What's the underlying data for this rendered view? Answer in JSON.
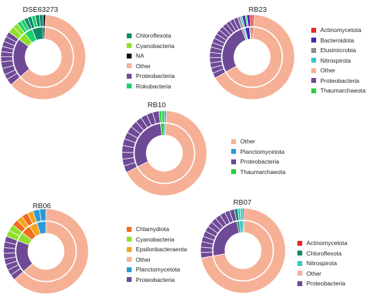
{
  "chart_data": [
    {
      "type": "pie",
      "variant": "nested-donut",
      "title": "DSE63273",
      "legend": [
        "Chloroflexota",
        "Cyanobacteria",
        "NA",
        "Other",
        "Proteobacteria",
        "Rokubacteria"
      ],
      "legend_colors": [
        "#0f8a6a",
        "#8ee02a",
        "#111111",
        "#f6b096",
        "#6e4a96",
        "#19d16c"
      ],
      "outer_ring": [
        {
          "phylum": "NA",
          "value": 1.0
        },
        {
          "phylum": "Other",
          "value": 63.0
        },
        {
          "phylum": "Proteobacteria",
          "value": 2.5
        },
        {
          "phylum": "Proteobacteria",
          "value": 2.0
        },
        {
          "phylum": "Proteobacteria",
          "value": 2.5
        },
        {
          "phylum": "Proteobacteria",
          "value": 2.5
        },
        {
          "phylum": "Proteobacteria",
          "value": 2.0
        },
        {
          "phylum": "Proteobacteria",
          "value": 2.0
        },
        {
          "phylum": "Proteobacteria",
          "value": 2.0
        },
        {
          "phylum": "Proteobacteria",
          "value": 2.0
        },
        {
          "phylum": "Proteobacteria",
          "value": 2.0
        },
        {
          "phylum": "Proteobacteria",
          "value": 2.0
        },
        {
          "phylum": "Cyanobacteria",
          "value": 2.5
        },
        {
          "phylum": "Cyanobacteria",
          "value": 2.0
        },
        {
          "phylum": "Rokubacteria",
          "value": 1.5
        },
        {
          "phylum": "Rokubacteria",
          "value": 1.5
        },
        {
          "phylum": "Chloroflexota",
          "value": 1.5
        },
        {
          "phylum": "Chloroflexota",
          "value": 1.5
        },
        {
          "phylum": "Rokubacteria",
          "value": 1.5
        },
        {
          "phylum": "Chloroflexota",
          "value": 1.5
        },
        {
          "phylum": "Chloroflexota",
          "value": 1.5
        }
      ],
      "inner_ring": [
        {
          "phylum": "NA",
          "value": 1.0
        },
        {
          "phylum": "Other",
          "value": 63.0
        },
        {
          "phylum": "Proteobacteria",
          "value": 21.5
        },
        {
          "phylum": "Cyanobacteria",
          "value": 4.5
        },
        {
          "phylum": "Rokubacteria",
          "value": 4.5
        },
        {
          "phylum": "Chloroflexota",
          "value": 6.0
        }
      ]
    },
    {
      "type": "pie",
      "variant": "nested-donut",
      "title": "RB23",
      "legend": [
        "Actinomycetota",
        "Bacteroidota",
        "Elusimicrobia",
        "Nitrospirota",
        "Other",
        "Proteobacteria",
        "Thaumarchaeota"
      ],
      "legend_colors": [
        "#e8262b",
        "#4b25b0",
        "#8c8c8c",
        "#35c9c9",
        "#f6b096",
        "#6e4a96",
        "#2ecc40"
      ],
      "outer_ring": [
        {
          "phylum": "Actinomycetota",
          "value": 0.8
        },
        {
          "phylum": "Other",
          "value": 66.0
        },
        {
          "phylum": "Proteobacteria",
          "value": 2.0
        },
        {
          "phylum": "Proteobacteria",
          "value": 2.0
        },
        {
          "phylum": "Proteobacteria",
          "value": 2.0
        },
        {
          "phylum": "Proteobacteria",
          "value": 2.0
        },
        {
          "phylum": "Proteobacteria",
          "value": 2.0
        },
        {
          "phylum": "Proteobacteria",
          "value": 2.0
        },
        {
          "phylum": "Proteobacteria",
          "value": 1.8
        },
        {
          "phylum": "Proteobacteria",
          "value": 1.8
        },
        {
          "phylum": "Proteobacteria",
          "value": 1.8
        },
        {
          "phylum": "Proteobacteria",
          "value": 1.8
        },
        {
          "phylum": "Proteobacteria",
          "value": 1.8
        },
        {
          "phylum": "Proteobacteria",
          "value": 1.8
        },
        {
          "phylum": "Proteobacteria",
          "value": 1.6
        },
        {
          "phylum": "Proteobacteria",
          "value": 1.6
        },
        {
          "phylum": "Proteobacteria",
          "value": 1.6
        },
        {
          "phylum": "Elusimicrobia",
          "value": 1.0
        },
        {
          "phylum": "Nitrospirota",
          "value": 0.8
        },
        {
          "phylum": "Bacteroidota",
          "value": 1.2
        },
        {
          "phylum": "Thaumarchaeota",
          "value": 0.6
        },
        {
          "phylum": "Bacteroidota",
          "value": 1.2
        },
        {
          "phylum": "Actinomycetota",
          "value": 0.8
        }
      ],
      "inner_ring": [
        {
          "phylum": "Actinomycetota",
          "value": 0.8
        },
        {
          "phylum": "Other",
          "value": 66.0
        },
        {
          "phylum": "Proteobacteria",
          "value": 27.6
        },
        {
          "phylum": "Elusimicrobia",
          "value": 1.0
        },
        {
          "phylum": "Nitrospirota",
          "value": 0.8
        },
        {
          "phylum": "Bacteroidota",
          "value": 2.4
        },
        {
          "phylum": "Thaumarchaeota",
          "value": 0.6
        },
        {
          "phylum": "Actinomycetota",
          "value": 0.8
        }
      ]
    },
    {
      "type": "pie",
      "variant": "nested-donut",
      "title": "RB10",
      "legend": [
        "Other",
        "Planctomycetota",
        "Proteobacteria",
        "Thaumarchaeota"
      ],
      "legend_colors": [
        "#f6b096",
        "#2b9ad6",
        "#6e4a96",
        "#2ecc40"
      ],
      "outer_ring": [
        {
          "phylum": "Planctomycetota",
          "value": 0.8
        },
        {
          "phylum": "Other",
          "value": 64.0
        },
        {
          "phylum": "Proteobacteria",
          "value": 2.5
        },
        {
          "phylum": "Proteobacteria",
          "value": 2.5
        },
        {
          "phylum": "Proteobacteria",
          "value": 2.5
        },
        {
          "phylum": "Proteobacteria",
          "value": 2.5
        },
        {
          "phylum": "Proteobacteria",
          "value": 2.5
        },
        {
          "phylum": "Proteobacteria",
          "value": 2.5
        },
        {
          "phylum": "Proteobacteria",
          "value": 2.5
        },
        {
          "phylum": "Proteobacteria",
          "value": 2.5
        },
        {
          "phylum": "Proteobacteria",
          "value": 2.3
        },
        {
          "phylum": "Proteobacteria",
          "value": 2.3
        },
        {
          "phylum": "Proteobacteria",
          "value": 2.3
        },
        {
          "phylum": "Proteobacteria",
          "value": 2.3
        },
        {
          "phylum": "Thaumarchaeota",
          "value": 1.0
        },
        {
          "phylum": "Thaumarchaeota",
          "value": 1.0
        }
      ],
      "inner_ring": [
        {
          "phylum": "Planctomycetota",
          "value": 0.8
        },
        {
          "phylum": "Other",
          "value": 64.0
        },
        {
          "phylum": "Proteobacteria",
          "value": 29.2
        },
        {
          "phylum": "Thaumarchaeota",
          "value": 2.0
        }
      ]
    },
    {
      "type": "pie",
      "variant": "nested-donut",
      "title": "RB06",
      "legend": [
        "Chlamydiota",
        "Cyanobacteria",
        "Epsilonbacteraeota",
        "Other",
        "Planctomycetota",
        "Proteobacteria"
      ],
      "legend_colors": [
        "#f36b1c",
        "#8ee02a",
        "#f4a51c",
        "#f6b096",
        "#2b9ad6",
        "#6e4a96"
      ],
      "outer_ring": [
        {
          "phylum": "Other",
          "value": 64.0
        },
        {
          "phylum": "Proteobacteria",
          "value": 2.2
        },
        {
          "phylum": "Proteobacteria",
          "value": 2.2
        },
        {
          "phylum": "Proteobacteria",
          "value": 2.2
        },
        {
          "phylum": "Proteobacteria",
          "value": 2.2
        },
        {
          "phylum": "Proteobacteria",
          "value": 2.2
        },
        {
          "phylum": "Proteobacteria",
          "value": 2.2
        },
        {
          "phylum": "Proteobacteria",
          "value": 2.2
        },
        {
          "phylum": "Proteobacteria",
          "value": 2.2
        },
        {
          "phylum": "Cyanobacteria",
          "value": 2.5
        },
        {
          "phylum": "Cyanobacteria",
          "value": 2.5
        },
        {
          "phylum": "Chlamydiota",
          "value": 2.5
        },
        {
          "phylum": "Epsilonbacteraeota",
          "value": 2.2
        },
        {
          "phylum": "Chlamydiota",
          "value": 2.5
        },
        {
          "phylum": "Epsilonbacteraeota",
          "value": 2.2
        },
        {
          "phylum": "Planctomycetota",
          "value": 2.5
        },
        {
          "phylum": "Planctomycetota",
          "value": 2.5
        }
      ],
      "inner_ring": [
        {
          "phylum": "Other",
          "value": 64.0
        },
        {
          "phylum": "Proteobacteria",
          "value": 17.6
        },
        {
          "phylum": "Cyanobacteria",
          "value": 5.0
        },
        {
          "phylum": "Chlamydiota",
          "value": 5.0
        },
        {
          "phylum": "Epsilonbacteraeota",
          "value": 4.4
        },
        {
          "phylum": "Planctomycetota",
          "value": 5.0
        }
      ]
    },
    {
      "type": "pie",
      "variant": "nested-donut",
      "title": "RB07",
      "legend": [
        "Actinomycetota",
        "Chloroflexota",
        "Nitrospirota",
        "Other",
        "Proteobacteria"
      ],
      "legend_colors": [
        "#e8262b",
        "#0f8a6a",
        "#35c9c9",
        "#f6b096",
        "#6e4a96"
      ],
      "outer_ring": [
        {
          "phylum": "Actinomycetota",
          "value": 0.6
        },
        {
          "phylum": "Other",
          "value": 69.0
        },
        {
          "phylum": "Proteobacteria",
          "value": 2.0
        },
        {
          "phylum": "Proteobacteria",
          "value": 2.0
        },
        {
          "phylum": "Proteobacteria",
          "value": 2.0
        },
        {
          "phylum": "Proteobacteria",
          "value": 2.0
        },
        {
          "phylum": "Proteobacteria",
          "value": 2.0
        },
        {
          "phylum": "Proteobacteria",
          "value": 2.0
        },
        {
          "phylum": "Proteobacteria",
          "value": 2.0
        },
        {
          "phylum": "Proteobacteria",
          "value": 2.0
        },
        {
          "phylum": "Proteobacteria",
          "value": 2.0
        },
        {
          "phylum": "Proteobacteria",
          "value": 2.0
        },
        {
          "phylum": "Proteobacteria",
          "value": 1.8
        },
        {
          "phylum": "Proteobacteria",
          "value": 1.8
        },
        {
          "phylum": "Chloroflexota",
          "value": 1.2
        },
        {
          "phylum": "Nitrospirota",
          "value": 1.0
        },
        {
          "phylum": "Nitrospirota",
          "value": 1.0
        }
      ],
      "inner_ring": [
        {
          "phylum": "Actinomycetota",
          "value": 0.6
        },
        {
          "phylum": "Other",
          "value": 69.0
        },
        {
          "phylum": "Proteobacteria",
          "value": 23.6
        },
        {
          "phylum": "Chloroflexota",
          "value": 1.2
        },
        {
          "phylum": "Nitrospirota",
          "value": 2.0
        }
      ]
    }
  ]
}
